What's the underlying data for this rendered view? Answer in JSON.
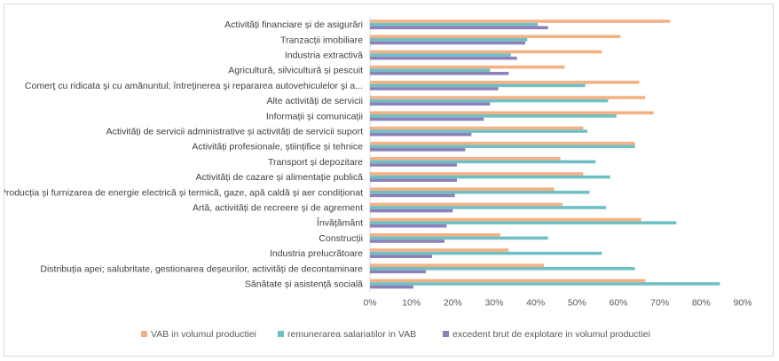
{
  "chart_data": {
    "type": "bar",
    "orientation": "horizontal",
    "title": "",
    "xlabel": "",
    "ylabel": "",
    "xlim": [
      0,
      90
    ],
    "x_ticks": [
      "0%",
      "10%",
      "20%",
      "30%",
      "40%",
      "50%",
      "60%",
      "70%",
      "80%",
      "90%"
    ],
    "tick_values": [
      0,
      10,
      20,
      30,
      40,
      50,
      60,
      70,
      80,
      90
    ],
    "grid": false,
    "legend_position": "bottom",
    "categories": [
      "Activități financiare și de asigurări",
      "Tranzacții imobiliare",
      "Industria extractivă",
      "Agricultură, silvicultură și pescuit",
      "Comerţ cu ridicata şi cu amănuntul; întreţinerea şi repararea autovehiculelor şi a...",
      "Alte activități de servicii",
      "Informații și comunicații",
      "Activități de servicii administrative și activități de servicii suport",
      "Activități profesionale, științifice și tehnice",
      "Transport și depozitare",
      "Activități de cazare și alimentație publică",
      "Producția și furnizarea de energie electrică și termică, gaze, apă caldă și aer condiționat",
      "Artă, activități de recreere și de agrement",
      "Învățământ",
      "Construcții",
      "Industria prelucrătoare",
      "Distribuția apei; salubritate, gestionarea deșeurilor, activități de decontaminare",
      "Sănătate și asistență socială"
    ],
    "series": [
      {
        "name": "VAB in volumul productiei",
        "color": "#f4b183",
        "values": [
          72.5,
          60.5,
          56,
          47,
          65,
          66.5,
          68.5,
          51.5,
          64,
          46,
          51.5,
          44.5,
          46.5,
          65.5,
          31.5,
          33.5,
          42,
          66.5
        ]
      },
      {
        "name": "remunerarea salariatilor in VAB",
        "color": "#6fc0c5",
        "values": [
          40.5,
          38,
          34,
          29,
          52,
          57.5,
          59.5,
          52.5,
          64,
          54.5,
          58,
          53,
          57,
          74,
          43,
          56,
          64,
          84.5
        ]
      },
      {
        "name": "excedent brut de explotare in volumul productiei",
        "color": "#8e80b8",
        "values": [
          43,
          37.5,
          35.5,
          33.5,
          31,
          29,
          27.5,
          24.5,
          23,
          21,
          21,
          20.5,
          20,
          18.5,
          18,
          15,
          13.5,
          10.5
        ]
      }
    ]
  }
}
